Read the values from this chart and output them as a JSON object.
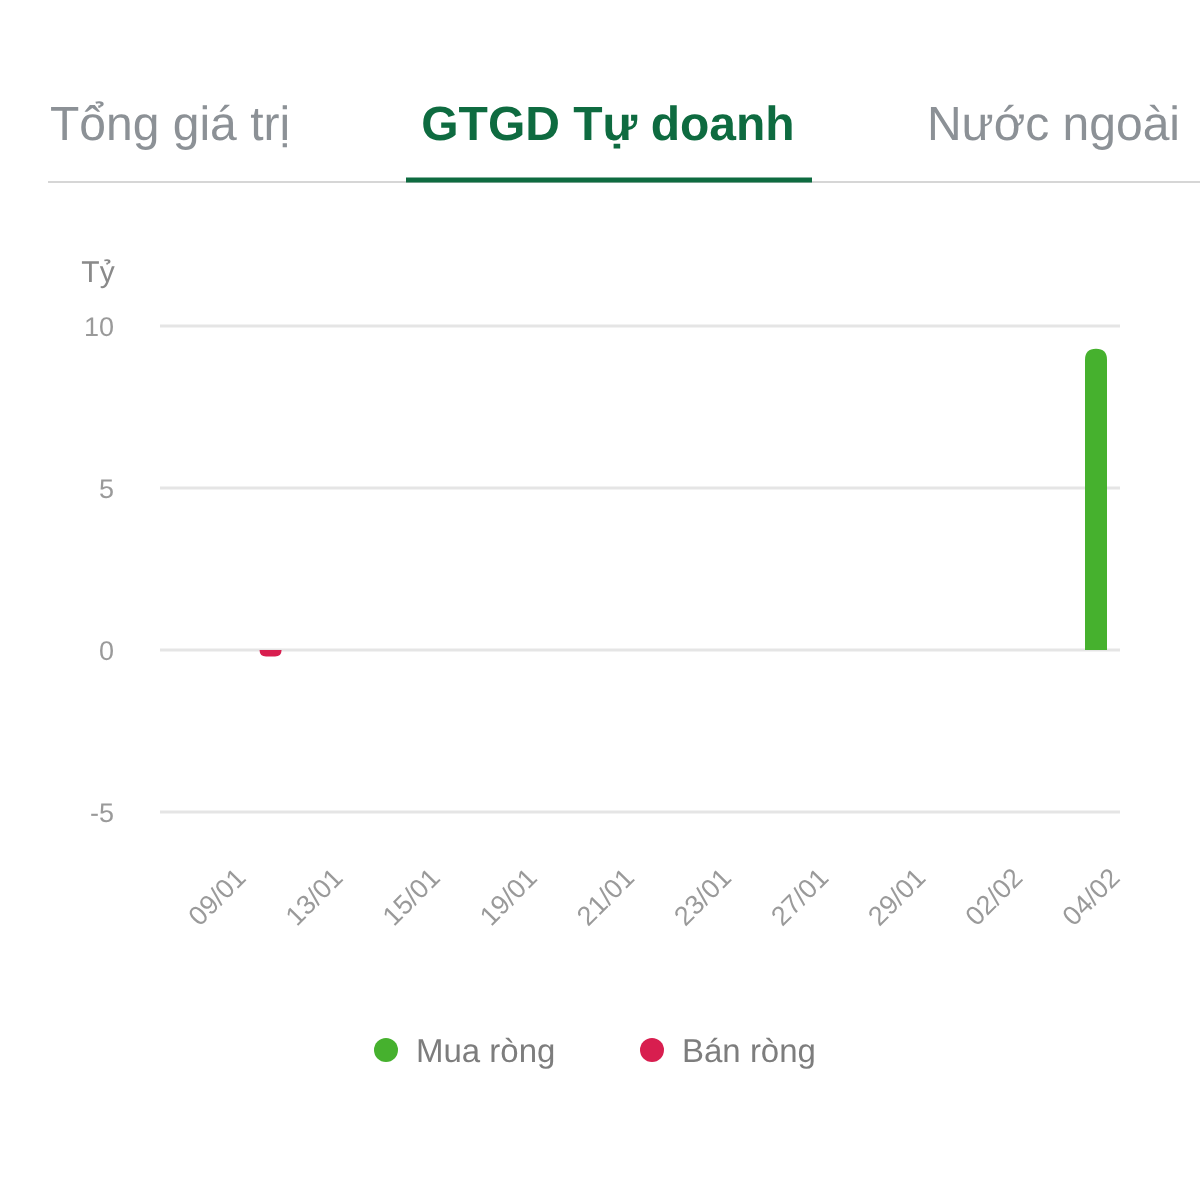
{
  "chart_data": {
    "type": "bar",
    "title": "GTGD Tự doanh",
    "ylabel": "Tỷ",
    "annotations": [
      "Tổng giá trị",
      "Nước ngoài"
    ],
    "categories": [
      "09/01",
      null,
      "13/01",
      null,
      "15/01",
      null,
      "19/01",
      null,
      "21/01",
      null,
      "23/01",
      null,
      "27/01",
      null,
      "29/01",
      null,
      "02/02",
      null,
      "04/02"
    ],
    "series": [
      {
        "name": "Mua ròng",
        "color": "#46b12e",
        "values": [
          null,
          null,
          null,
          null,
          null,
          null,
          null,
          null,
          null,
          null,
          null,
          null,
          null,
          null,
          null,
          null,
          null,
          null,
          9.3
        ]
      },
      {
        "name": "Bán ròng",
        "color": "#d81e4f",
        "values": [
          null,
          -0.2,
          null,
          null,
          null,
          null,
          null,
          null,
          null,
          null,
          null,
          null,
          null,
          null,
          null,
          null,
          null,
          null,
          null
        ]
      }
    ],
    "stacked": true,
    "ylim": [
      -5,
      10
    ],
    "yticks": [
      -5,
      0,
      5,
      10
    ],
    "grid": "y",
    "legend": "bottom"
  }
}
